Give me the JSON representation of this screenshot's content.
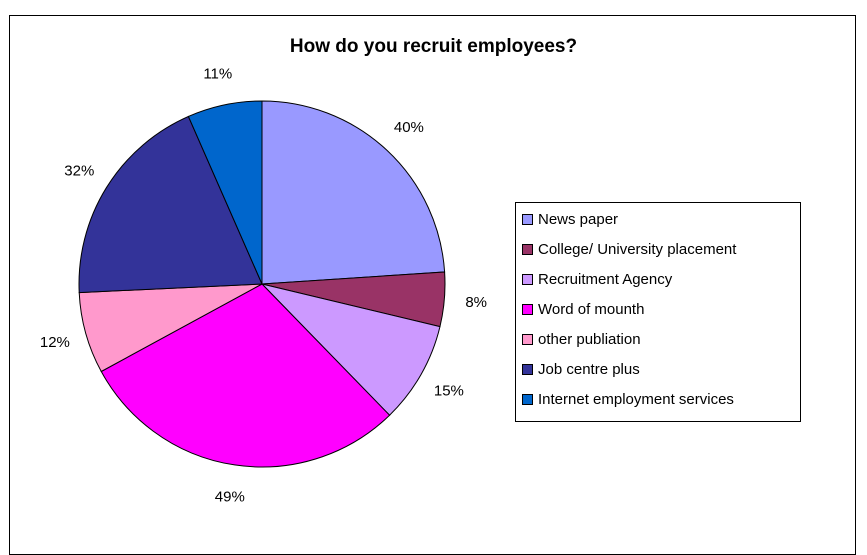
{
  "chart_data": {
    "type": "pie",
    "title": "How do you recruit employees?",
    "slices": [
      {
        "name": "News paper",
        "value": 40,
        "label": "40%",
        "color": "#9999ff"
      },
      {
        "name": "College/ University placement",
        "value": 8,
        "label": "8%",
        "color": "#993366"
      },
      {
        "name": "Recruitment Agency",
        "value": 15,
        "label": "15%",
        "color": "#cc99ff"
      },
      {
        "name": "Word of mounth",
        "value": 49,
        "label": "49%",
        "color": "#ff00ff"
      },
      {
        "name": "other publiation",
        "value": 12,
        "label": "12%",
        "color": "#ff99cc"
      },
      {
        "name": "Job centre plus",
        "value": 32,
        "label": "32%",
        "color": "#333399"
      },
      {
        "name": "Internet employment services",
        "value": 11,
        "label": "11%",
        "color": "#0066cc"
      }
    ],
    "legend_position": "right"
  }
}
